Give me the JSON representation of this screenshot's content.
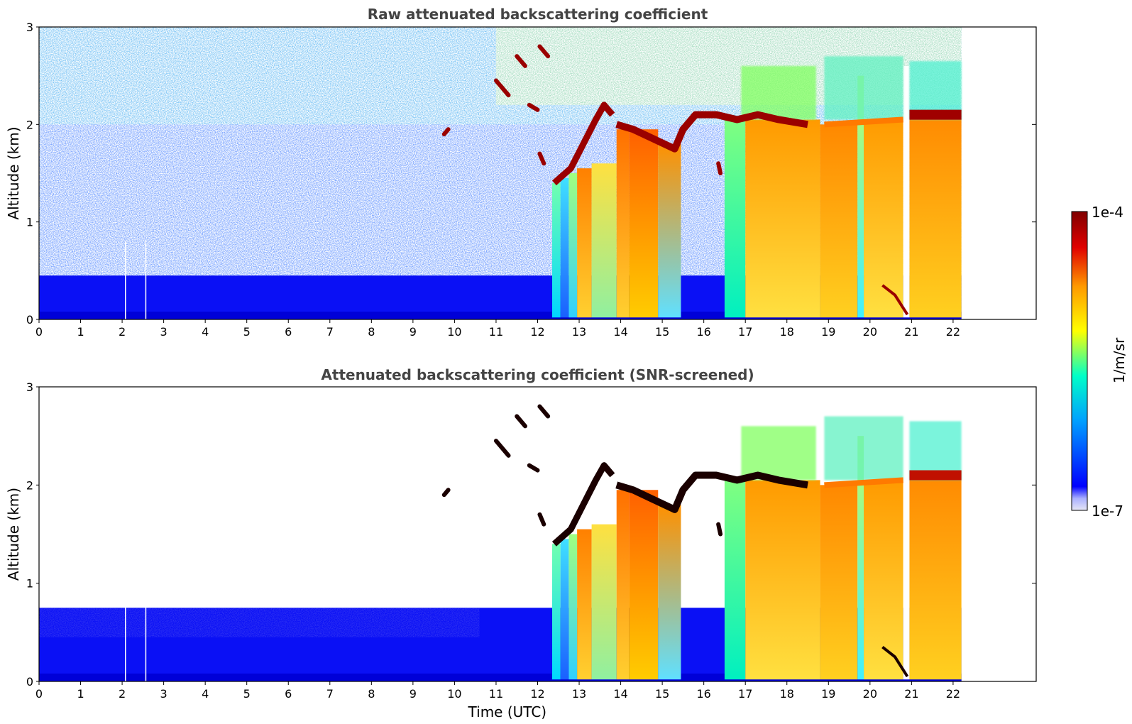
{
  "chart_data": [
    {
      "type": "heatmap",
      "title": "Raw attenuated backscattering coefficient",
      "xlabel": "",
      "ylabel": "Altitude (km)",
      "xlim": [
        0,
        24
      ],
      "ylim": [
        0,
        3
      ],
      "xticks": [
        "0",
        "1",
        "2",
        "3",
        "4",
        "5",
        "6",
        "7",
        "8",
        "9",
        "10",
        "11",
        "12",
        "13",
        "14",
        "15",
        "16",
        "17",
        "18",
        "19",
        "20",
        "21",
        "22"
      ],
      "yticks": [
        "0",
        "1",
        "2",
        "3"
      ],
      "data_end_time": 22.2,
      "screened": false,
      "columns": [
        {
          "t0": 0,
          "t1": 11,
          "kind": "noise"
        },
        {
          "t0": 11,
          "t1": 12.35,
          "kind": "noise-high-clouds"
        },
        {
          "t0": 12.35,
          "t1": 13.9,
          "kind": "fog-columns",
          "cloud_base_km": 1.4
        },
        {
          "t0": 13.9,
          "t1": 15.45,
          "kind": "precip",
          "cloud_base_km": 1.9
        },
        {
          "t0": 15.45,
          "t1": 16.5,
          "kind": "noise-cloud",
          "cloud_base_km": 2.1
        },
        {
          "t0": 16.5,
          "t1": 22.2,
          "kind": "precip",
          "cloud_base_km": 2.05
        }
      ],
      "layers": [
        {
          "t0": 10.95,
          "t1": 12.3,
          "alt_km": 2.4,
          "kind": "cirrus"
        },
        {
          "t0": 12.5,
          "t1": 13.6,
          "alt_km": 1.7,
          "kind": "cloud-base"
        },
        {
          "t0": 13.9,
          "t1": 15.4,
          "alt_km": 1.95,
          "kind": "cloud-base"
        },
        {
          "t0": 15.4,
          "t1": 17.0,
          "alt_km": 2.1,
          "kind": "cloud-base"
        },
        {
          "t0": 17.0,
          "t1": 18.5,
          "alt_km": 2.05,
          "kind": "cloud-base"
        },
        {
          "t0": 20.8,
          "t1": 22.2,
          "alt_km": 2.1,
          "kind": "cloud-base"
        }
      ]
    },
    {
      "type": "heatmap",
      "title": "Attenuated backscattering coefficient (SNR-screened)",
      "xlabel": "Time (UTC)",
      "ylabel": "Altitude (km)",
      "xlim": [
        0,
        24
      ],
      "ylim": [
        0,
        3
      ],
      "xticks": [
        "0",
        "1",
        "2",
        "3",
        "4",
        "5",
        "6",
        "7",
        "8",
        "9",
        "10",
        "11",
        "12",
        "13",
        "14",
        "15",
        "16",
        "17",
        "18",
        "19",
        "20",
        "21",
        "22"
      ],
      "yticks": [
        "0",
        "1",
        "2",
        "3"
      ],
      "data_end_time": 22.2,
      "screened": true,
      "boundary_layer_top_km": 0.75
    }
  ],
  "colorbar": {
    "label": "1/m/sr",
    "max_label": "1e-4",
    "min_label": "1e-7",
    "colormap": [
      "#e6e6f5",
      "#0000ff",
      "#00a0ff",
      "#00ffc8",
      "#ffff00",
      "#ff9900",
      "#e00000",
      "#800000"
    ]
  }
}
